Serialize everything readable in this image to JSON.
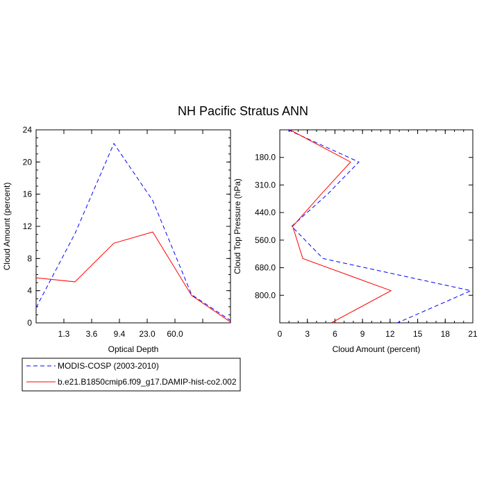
{
  "title": "NH Pacific Stratus ANN",
  "colors": {
    "obs": "#0000ff",
    "model": "#ff0000",
    "axis": "#000000"
  },
  "legend": {
    "placement": "bottom-left",
    "entries": [
      {
        "label": "MODIS-COSP (2003-2010)",
        "color": "#0000ff",
        "dash": "dashed"
      },
      {
        "label": "b.e21.B1850cmip6.f09_g17.DAMIP-hist-co2.002",
        "color": "#ff0000",
        "dash": "solid"
      }
    ]
  },
  "chart_data": [
    {
      "type": "line",
      "xlabel": "Optical Depth",
      "ylabel": "Cloud Amount (percent)",
      "x_tick_labels": [
        "1.3",
        "3.6",
        "9.4",
        "23.0",
        "60.0"
      ],
      "x_bins": 7,
      "y_ticks": [
        0,
        4,
        8,
        12,
        16,
        20,
        24
      ],
      "ylim": [
        0,
        24
      ],
      "series": [
        {
          "name": "MODIS-COSP (2003-2010)",
          "values": [
            1.9,
            11.1,
            22.3,
            15.2,
            3.5,
            0.3
          ]
        },
        {
          "name": "b.e21.B1850cmip6.f09_g17.DAMIP-hist-co2.002",
          "values": [
            5.6,
            5.1,
            9.9,
            11.3,
            3.4,
            0.1
          ]
        }
      ]
    },
    {
      "type": "line",
      "xlabel": "Cloud Amount (percent)",
      "ylabel": "Cloud Top Pressure (hPa)",
      "x_ticks": [
        0,
        3,
        6,
        9,
        12,
        15,
        18,
        21
      ],
      "xlim": [
        0,
        21
      ],
      "y_tick_labels": [
        "180.0",
        "310.0",
        "440.0",
        "560.0",
        "680.0",
        "800.0"
      ],
      "y_bins": 7,
      "series": [
        {
          "name": "MODIS-COSP (2003-2010)",
          "values": [
            0.9,
            8.6,
            5.2,
            1.3,
            4.7,
            20.8,
            12.8
          ]
        },
        {
          "name": "b.e21.B1850cmip6.f09_g17.DAMIP-hist-co2.002",
          "values": [
            1.1,
            7.7,
            4.5,
            1.4,
            2.5,
            12.1,
            5.6
          ]
        }
      ]
    }
  ]
}
